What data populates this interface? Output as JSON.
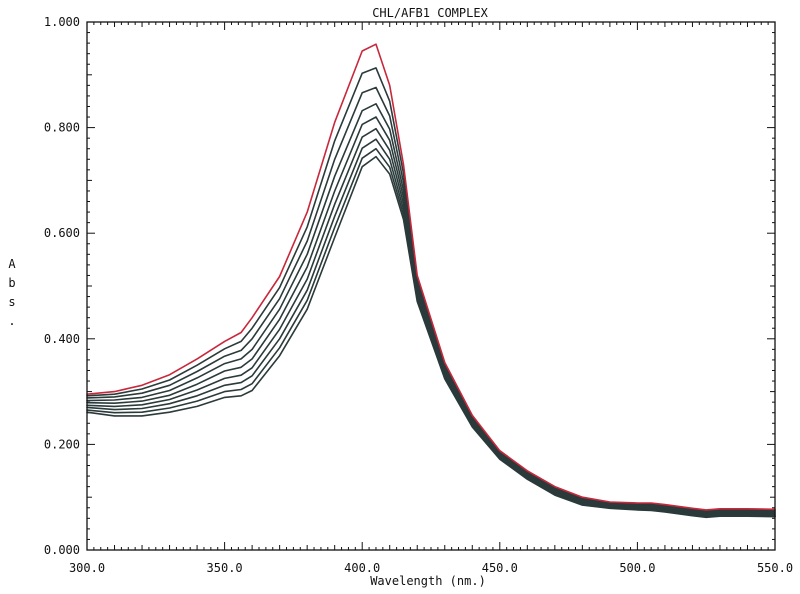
{
  "chart_data": {
    "type": "line",
    "title": "CHL/AFB1 COMPLEX",
    "xlabel": "Wavelength (nm.)",
    "ylabel": "Abs.",
    "xlim": [
      300,
      550
    ],
    "ylim": [
      0,
      1
    ],
    "xticks": [
      "300.0",
      "350.0",
      "400.0",
      "450.0",
      "500.0",
      "550.0"
    ],
    "yticks": [
      "0.000",
      "0.200",
      "0.400",
      "0.600",
      "0.800",
      "1.000"
    ],
    "grid": false,
    "legend": "none",
    "x": [
      300,
      310,
      320,
      330,
      340,
      350,
      356,
      360,
      370,
      380,
      390,
      400,
      405,
      410,
      415,
      420,
      430,
      440,
      450,
      460,
      470,
      480,
      490,
      500,
      505,
      510,
      520,
      525,
      530,
      540,
      550
    ],
    "series": [
      {
        "color": "#c8283c",
        "values": [
          0.295,
          0.3,
          0.312,
          0.332,
          0.362,
          0.395,
          0.412,
          0.44,
          0.518,
          0.64,
          0.81,
          0.945,
          0.958,
          0.88,
          0.73,
          0.52,
          0.355,
          0.255,
          0.188,
          0.15,
          0.12,
          0.1,
          0.091,
          0.089,
          0.089,
          0.086,
          0.079,
          0.076,
          0.078,
          0.078,
          0.077
        ]
      },
      {
        "color": "#2b3a3a",
        "values": [
          0.292,
          0.295,
          0.305,
          0.322,
          0.35,
          0.381,
          0.395,
          0.42,
          0.497,
          0.612,
          0.775,
          0.903,
          0.913,
          0.85,
          0.713,
          0.512,
          0.35,
          0.251,
          0.186,
          0.148,
          0.118,
          0.098,
          0.089,
          0.087,
          0.087,
          0.084,
          0.077,
          0.074,
          0.076,
          0.076,
          0.075
        ]
      },
      {
        "color": "#2b3a3a",
        "values": [
          0.288,
          0.29,
          0.297,
          0.312,
          0.338,
          0.367,
          0.378,
          0.4,
          0.476,
          0.585,
          0.74,
          0.866,
          0.876,
          0.822,
          0.696,
          0.504,
          0.345,
          0.248,
          0.184,
          0.146,
          0.116,
          0.096,
          0.087,
          0.085,
          0.085,
          0.082,
          0.075,
          0.072,
          0.074,
          0.074,
          0.073
        ]
      },
      {
        "color": "#2b3a3a",
        "values": [
          0.283,
          0.284,
          0.289,
          0.302,
          0.326,
          0.353,
          0.362,
          0.38,
          0.456,
          0.56,
          0.708,
          0.832,
          0.845,
          0.797,
          0.681,
          0.497,
          0.341,
          0.245,
          0.182,
          0.144,
          0.114,
          0.094,
          0.086,
          0.083,
          0.083,
          0.08,
          0.073,
          0.07,
          0.072,
          0.072,
          0.071
        ]
      },
      {
        "color": "#2b3a3a",
        "values": [
          0.279,
          0.278,
          0.282,
          0.293,
          0.314,
          0.339,
          0.346,
          0.362,
          0.437,
          0.536,
          0.68,
          0.806,
          0.82,
          0.776,
          0.668,
          0.491,
          0.337,
          0.242,
          0.18,
          0.142,
          0.112,
          0.092,
          0.084,
          0.081,
          0.081,
          0.078,
          0.071,
          0.068,
          0.07,
          0.07,
          0.069
        ]
      },
      {
        "color": "#2b3a3a",
        "values": [
          0.274,
          0.272,
          0.275,
          0.285,
          0.303,
          0.325,
          0.331,
          0.345,
          0.418,
          0.513,
          0.655,
          0.782,
          0.798,
          0.757,
          0.656,
          0.485,
          0.333,
          0.24,
          0.178,
          0.14,
          0.11,
          0.09,
          0.083,
          0.08,
          0.079,
          0.076,
          0.069,
          0.066,
          0.068,
          0.068,
          0.067
        ]
      },
      {
        "color": "#2b3a3a",
        "values": [
          0.27,
          0.266,
          0.268,
          0.277,
          0.292,
          0.312,
          0.317,
          0.33,
          0.4,
          0.492,
          0.632,
          0.761,
          0.778,
          0.74,
          0.645,
          0.48,
          0.33,
          0.237,
          0.176,
          0.138,
          0.108,
          0.088,
          0.081,
          0.078,
          0.078,
          0.074,
          0.067,
          0.064,
          0.066,
          0.066,
          0.065
        ]
      },
      {
        "color": "#2b3a3a",
        "values": [
          0.265,
          0.26,
          0.261,
          0.269,
          0.282,
          0.3,
          0.304,
          0.315,
          0.383,
          0.473,
          0.611,
          0.742,
          0.76,
          0.725,
          0.635,
          0.475,
          0.327,
          0.235,
          0.174,
          0.136,
          0.106,
          0.086,
          0.08,
          0.077,
          0.076,
          0.073,
          0.066,
          0.063,
          0.065,
          0.065,
          0.064
        ]
      },
      {
        "color": "#2b3a3a",
        "values": [
          0.261,
          0.254,
          0.254,
          0.261,
          0.272,
          0.289,
          0.292,
          0.302,
          0.368,
          0.456,
          0.592,
          0.726,
          0.745,
          0.712,
          0.626,
          0.471,
          0.324,
          0.233,
          0.172,
          0.134,
          0.104,
          0.085,
          0.079,
          0.076,
          0.075,
          0.072,
          0.065,
          0.062,
          0.064,
          0.064,
          0.063
        ]
      }
    ]
  }
}
